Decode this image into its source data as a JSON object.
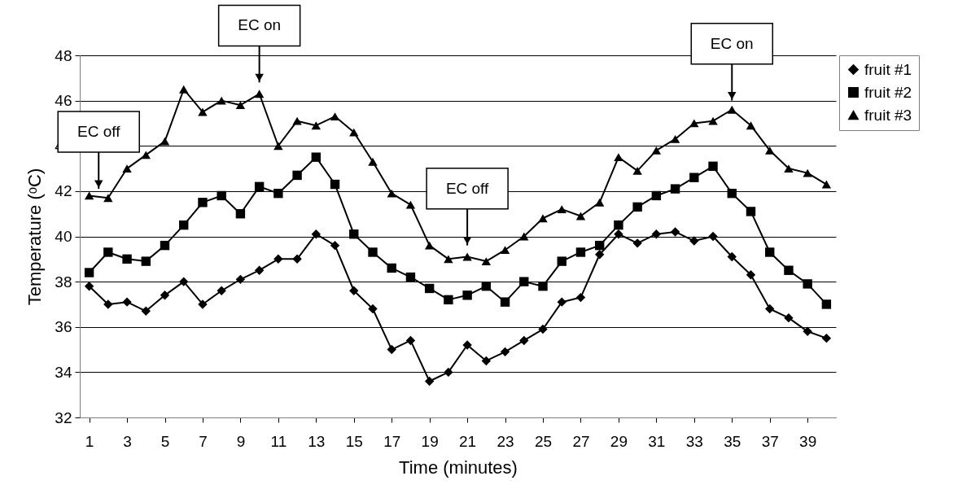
{
  "chart_data": {
    "type": "line",
    "xlabel": "Time (minutes)",
    "ylabel": "Temperature (ᵒC)",
    "x": [
      1,
      2,
      3,
      4,
      5,
      6,
      7,
      8,
      9,
      10,
      11,
      12,
      13,
      14,
      15,
      16,
      17,
      18,
      19,
      20,
      21,
      22,
      23,
      24,
      25,
      26,
      27,
      28,
      29,
      30,
      31,
      32,
      33,
      34,
      35,
      36,
      37,
      38,
      39,
      40
    ],
    "xlim": [
      0.5,
      40.5
    ],
    "xticks": [
      1,
      3,
      5,
      7,
      9,
      11,
      13,
      15,
      17,
      19,
      21,
      23,
      25,
      27,
      29,
      31,
      33,
      35,
      37,
      39
    ],
    "ylim": [
      32,
      48
    ],
    "yticks": [
      32,
      34,
      36,
      38,
      40,
      42,
      44,
      46,
      48
    ],
    "grid": "y",
    "legend": "right",
    "series": [
      {
        "name": "fruit #1",
        "color": "#000000",
        "marker": "diamond",
        "values": [
          37.8,
          37.0,
          37.1,
          36.7,
          37.4,
          38.0,
          37.0,
          37.6,
          38.1,
          38.5,
          39.0,
          39.0,
          40.1,
          39.6,
          37.6,
          36.8,
          35.0,
          35.4,
          33.6,
          34.0,
          35.2,
          34.5,
          34.9,
          35.4,
          35.9,
          37.1,
          37.3,
          39.2,
          40.1,
          39.7,
          40.1,
          40.2,
          39.8,
          40.0,
          39.1,
          38.3,
          36.8,
          36.4,
          35.8,
          35.5
        ]
      },
      {
        "name": "fruit #2",
        "color": "#000000",
        "marker": "square",
        "values": [
          38.4,
          39.3,
          39.0,
          38.9,
          39.6,
          40.5,
          41.5,
          41.8,
          41.0,
          42.2,
          41.9,
          42.7,
          43.5,
          42.3,
          40.1,
          39.3,
          38.6,
          38.2,
          37.7,
          37.2,
          37.4,
          37.8,
          37.1,
          38.0,
          37.8,
          38.9,
          39.3,
          39.6,
          40.5,
          41.3,
          41.8,
          42.1,
          42.6,
          43.1,
          41.9,
          41.1,
          39.3,
          38.5,
          37.9,
          37.0
        ]
      },
      {
        "name": "fruit #3",
        "color": "#000000",
        "marker": "triangle",
        "values": [
          41.8,
          41.7,
          43.0,
          43.6,
          44.2,
          46.5,
          45.5,
          46.0,
          45.8,
          46.3,
          44.0,
          45.1,
          44.9,
          45.3,
          44.6,
          43.3,
          41.9,
          41.4,
          39.6,
          39.0,
          39.1,
          38.9,
          39.4,
          40.0,
          40.8,
          41.2,
          40.9,
          41.5,
          43.5,
          42.9,
          43.8,
          44.3,
          45.0,
          45.1,
          45.6,
          44.9,
          43.8,
          43.0,
          42.8,
          42.3
        ]
      }
    ],
    "annotations": [
      "EC off",
      "EC on",
      "EC off",
      "EC on"
    ]
  }
}
